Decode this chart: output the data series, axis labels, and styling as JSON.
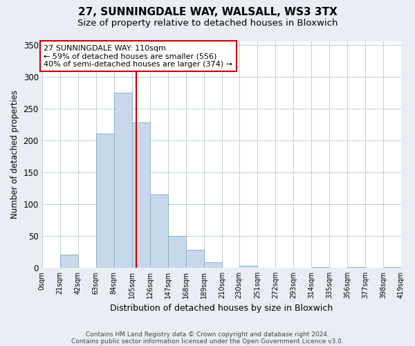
{
  "title": "27, SUNNINGDALE WAY, WALSALL, WS3 3TX",
  "subtitle": "Size of property relative to detached houses in Bloxwich",
  "xlabel": "Distribution of detached houses by size in Bloxwich",
  "ylabel": "Number of detached properties",
  "bar_color": "#c8d8eb",
  "bar_edge_color": "#8ab0cc",
  "bin_edges": [
    0,
    21,
    42,
    63,
    84,
    105,
    126,
    147,
    168,
    189,
    210,
    230,
    251,
    272,
    293,
    314,
    335,
    356,
    377,
    398,
    419
  ],
  "bar_heights": [
    0,
    20,
    0,
    210,
    275,
    228,
    115,
    50,
    28,
    8,
    0,
    3,
    0,
    0,
    0,
    1,
    0,
    1,
    0,
    1
  ],
  "vline_x": 110,
  "vline_color": "#cc0000",
  "annotation_line1": "27 SUNNINGDALE WAY: 110sqm",
  "annotation_line2": "← 59% of detached houses are smaller (556)",
  "annotation_line3": "40% of semi-detached houses are larger (374) →",
  "annotation_box_color": "#ffffff",
  "annotation_box_edge": "#cc0000",
  "ylim": [
    0,
    355
  ],
  "xlim": [
    0,
    419
  ],
  "tick_labels": [
    "0sqm",
    "21sqm",
    "42sqm",
    "63sqm",
    "84sqm",
    "105sqm",
    "126sqm",
    "147sqm",
    "168sqm",
    "189sqm",
    "210sqm",
    "230sqm",
    "251sqm",
    "272sqm",
    "293sqm",
    "314sqm",
    "335sqm",
    "356sqm",
    "377sqm",
    "398sqm",
    "419sqm"
  ],
  "ytick_vals": [
    0,
    50,
    100,
    150,
    200,
    250,
    300,
    350
  ],
  "footer_line1": "Contains HM Land Registry data © Crown copyright and database right 2024.",
  "footer_line2": "Contains public sector information licensed under the Open Government Licence v3.0.",
  "background_color": "#e8eef4",
  "plot_background": "#ffffff",
  "grid_color": "#b8c8d8",
  "title_fontsize": 11,
  "subtitle_fontsize": 9.5
}
